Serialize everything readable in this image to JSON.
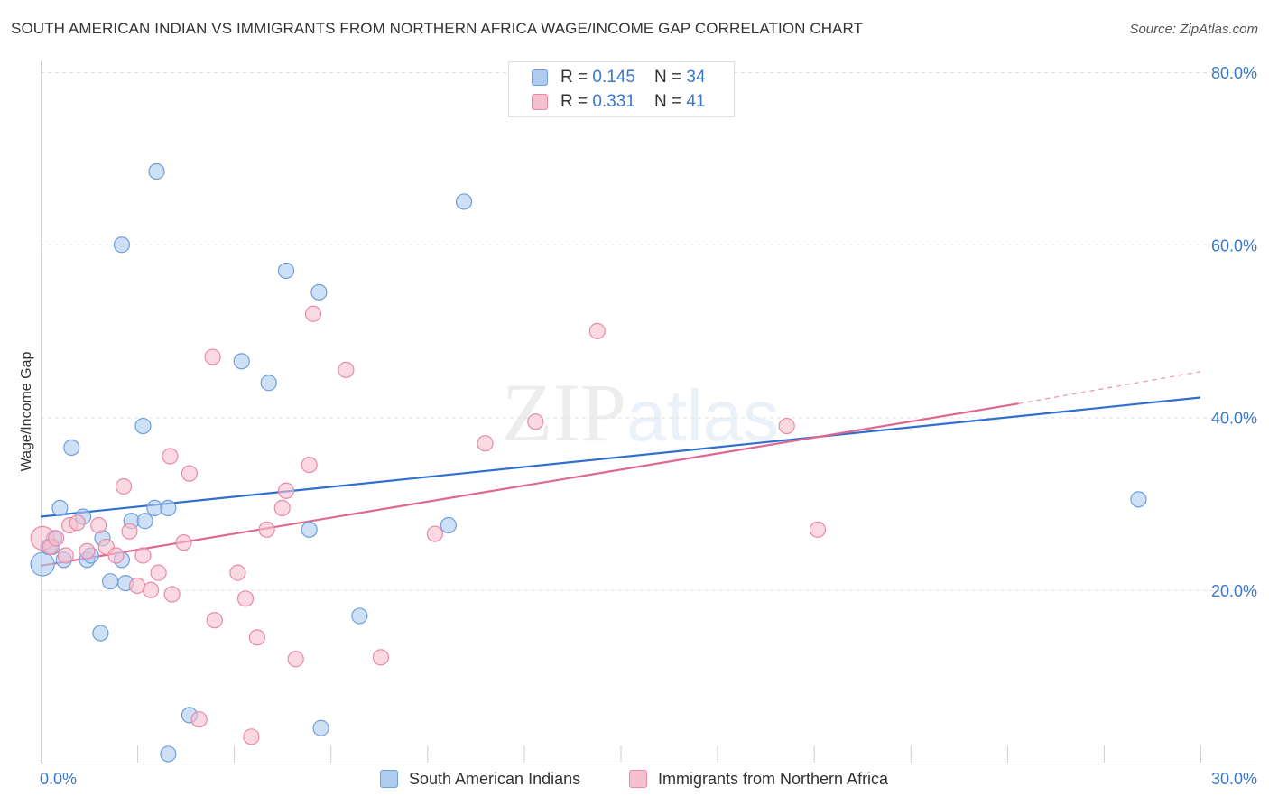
{
  "title": "SOUTH AMERICAN INDIAN VS IMMIGRANTS FROM NORTHERN AFRICA WAGE/INCOME GAP CORRELATION CHART",
  "source": "Source: ZipAtlas.com",
  "watermark": {
    "zip": "ZIP",
    "atlas": "atlas"
  },
  "legend": {
    "rows": [
      {
        "r_label": "R = ",
        "r_value": "0.145",
        "n_label": "N = ",
        "n_value": "34"
      },
      {
        "r_label": "R = ",
        "r_value": "0.331",
        "n_label": "N = ",
        "n_value": " 41"
      }
    ]
  },
  "bottom_legend": [
    "South American Indians",
    "Immigrants from Northern Africa"
  ],
  "chart_data": {
    "type": "scatter",
    "ylabel": "Wage/Income Gap",
    "xlim": [
      0,
      30
    ],
    "ylim": [
      0,
      80
    ],
    "y_ticks": [
      "80.0%",
      "60.0%",
      "40.0%",
      "20.0%"
    ],
    "y_tick_values": [
      80,
      60,
      40,
      20
    ],
    "x_tick_labels": [
      "0.0%",
      "30.0%"
    ],
    "x_tick_values": [
      0,
      30
    ],
    "grid": true,
    "colors": {
      "blue_fill": "#aecbf0",
      "blue_stroke": "#6f9fdb",
      "blue_line": "#2f6fcf",
      "pink_fill": "#f7c0d0",
      "pink_stroke": "#e98aa7",
      "pink_line": "#e0678f",
      "tick_text": "#3b78c8"
    },
    "series": [
      {
        "name": "South American Indians",
        "points": [
          [
            0.05,
            23.0
          ],
          [
            0.2,
            25.0
          ],
          [
            0.35,
            26.0
          ],
          [
            0.5,
            29.5
          ],
          [
            0.6,
            23.5
          ],
          [
            0.8,
            36.5
          ],
          [
            1.1,
            28.5
          ],
          [
            1.2,
            23.5
          ],
          [
            1.3,
            24.0
          ],
          [
            1.6,
            26.0
          ],
          [
            1.8,
            21.0
          ],
          [
            2.1,
            60.0
          ],
          [
            2.1,
            23.5
          ],
          [
            2.2,
            20.8
          ],
          [
            2.35,
            28.0
          ],
          [
            2.65,
            39.0
          ],
          [
            2.7,
            28.0
          ],
          [
            2.95,
            29.5
          ],
          [
            3.3,
            29.5
          ],
          [
            3.0,
            68.5
          ],
          [
            3.3,
            1.0
          ],
          [
            1.55,
            15.0
          ],
          [
            3.85,
            5.5
          ],
          [
            5.2,
            46.5
          ],
          [
            5.9,
            44.0
          ],
          [
            6.35,
            57.0
          ],
          [
            6.95,
            27.0
          ],
          [
            7.2,
            54.5
          ],
          [
            7.25,
            4.0
          ],
          [
            8.25,
            17.0
          ],
          [
            10.55,
            27.5
          ],
          [
            10.95,
            65.0
          ],
          [
            28.4,
            30.5
          ],
          [
            0.3,
            25.0
          ]
        ],
        "trend": {
          "x0": 0,
          "y0": 28.5,
          "x1": 30,
          "y1": 42.3
        }
      },
      {
        "name": "Immigrants from Northern Africa",
        "points": [
          [
            0.05,
            26.0
          ],
          [
            0.25,
            25.0
          ],
          [
            0.4,
            26.0
          ],
          [
            0.65,
            24.0
          ],
          [
            0.75,
            27.5
          ],
          [
            0.95,
            27.8
          ],
          [
            1.2,
            24.5
          ],
          [
            1.5,
            27.5
          ],
          [
            1.7,
            25.0
          ],
          [
            1.95,
            24.0
          ],
          [
            2.15,
            32.0
          ],
          [
            2.3,
            26.8
          ],
          [
            2.5,
            20.5
          ],
          [
            2.65,
            24.0
          ],
          [
            2.85,
            20.0
          ],
          [
            3.05,
            22.0
          ],
          [
            3.35,
            35.5
          ],
          [
            3.4,
            19.5
          ],
          [
            3.7,
            25.5
          ],
          [
            3.85,
            33.5
          ],
          [
            4.1,
            5.0
          ],
          [
            4.45,
            47.0
          ],
          [
            4.5,
            16.5
          ],
          [
            5.1,
            22.0
          ],
          [
            5.3,
            19.0
          ],
          [
            5.45,
            3.0
          ],
          [
            5.6,
            14.5
          ],
          [
            5.85,
            27.0
          ],
          [
            6.25,
            29.5
          ],
          [
            6.35,
            31.5
          ],
          [
            6.6,
            12.0
          ],
          [
            6.95,
            34.5
          ],
          [
            7.05,
            52.0
          ],
          [
            7.9,
            45.5
          ],
          [
            8.8,
            12.2
          ],
          [
            10.2,
            26.5
          ],
          [
            11.5,
            37.0
          ],
          [
            12.8,
            39.5
          ],
          [
            14.4,
            50.0
          ],
          [
            19.3,
            39.0
          ],
          [
            20.1,
            27.0
          ]
        ],
        "trend": {
          "x0": 0,
          "y0": 22.8,
          "x1": 25.3,
          "y1": 41.6
        },
        "trend_dashed": {
          "x0": 25.3,
          "y0": 41.6,
          "x1": 30,
          "y1": 45.3
        }
      }
    ]
  }
}
